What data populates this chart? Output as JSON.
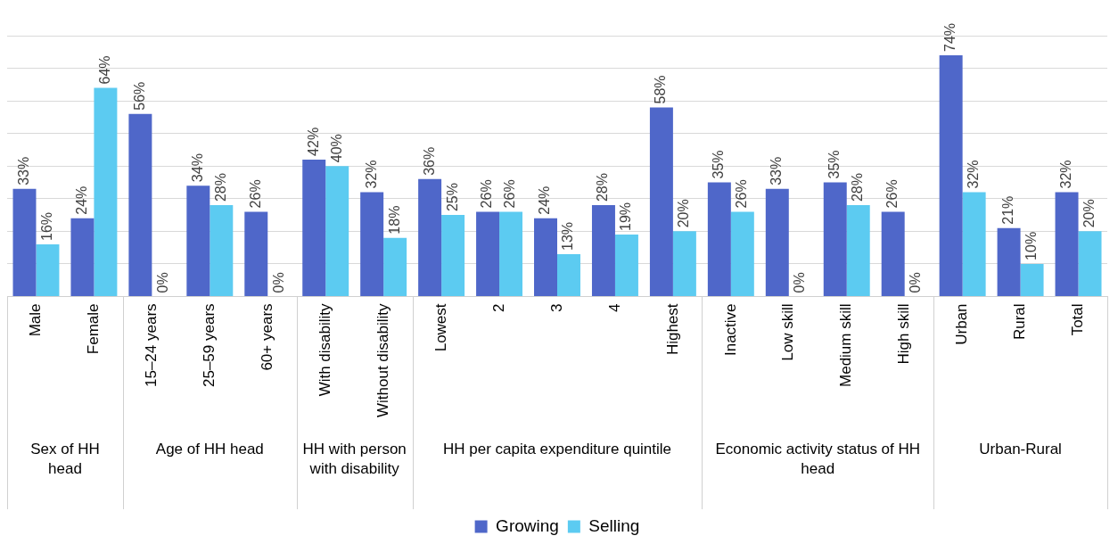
{
  "chart_data": {
    "type": "bar",
    "categories": [
      "Male",
      "Female",
      "15–24 years",
      "25–59 years",
      "60+ years",
      "With disability",
      "Without disability",
      "Lowest",
      "2",
      "3",
      "4",
      "Highest",
      "Inactive",
      "Low skill",
      "Medium skill",
      "High skill",
      "Urban",
      "Rural",
      "Total"
    ],
    "series": [
      {
        "name": "Growing",
        "color": "#4f67c9",
        "values": [
          33,
          24,
          56,
          34,
          26,
          42,
          32,
          36,
          26,
          24,
          28,
          58,
          35,
          33,
          35,
          26,
          74,
          21,
          32
        ],
        "value_labels": [
          "33%",
          "24%",
          "56%",
          "34%",
          "26%",
          "42%",
          "32%",
          "36%",
          "26%",
          "24%",
          "28%",
          "58%",
          "35%",
          "33%",
          "35%",
          "26%",
          "74%",
          "21%",
          "32%"
        ]
      },
      {
        "name": "Selling",
        "color": "#5ccbf1",
        "values": [
          16,
          64,
          0,
          28,
          0,
          40,
          18,
          25,
          26,
          13,
          19,
          20,
          26,
          0,
          28,
          0,
          32,
          10,
          20
        ],
        "value_labels": [
          "16%",
          "64%",
          "0%",
          "28%",
          "0%",
          "40%",
          "18%",
          "25%",
          "26%",
          "13%",
          "19%",
          "20%",
          "26%",
          "0%",
          "28%",
          "0%",
          "32%",
          "10%",
          "20%"
        ]
      }
    ],
    "annotations": [
      "Sex of HH head",
      "Age of HH head",
      "HH with person with disability",
      "HH per capita expenditure quintile",
      "Economic activity status of HH head",
      "Urban-Rural"
    ],
    "yticks": [
      {
        "value": 0,
        "label": null
      },
      {
        "value": 10,
        "label": null
      },
      {
        "value": 20,
        "label": null
      },
      {
        "value": 30,
        "label": null
      },
      {
        "value": 40,
        "label": null
      },
      {
        "value": 50,
        "label": null
      },
      {
        "value": 60,
        "label": null
      },
      {
        "value": 70,
        "label": null
      },
      {
        "value": 80,
        "label": null
      }
    ],
    "grid": "y",
    "legend": "bottom",
    "tick_labels": "x"
  }
}
